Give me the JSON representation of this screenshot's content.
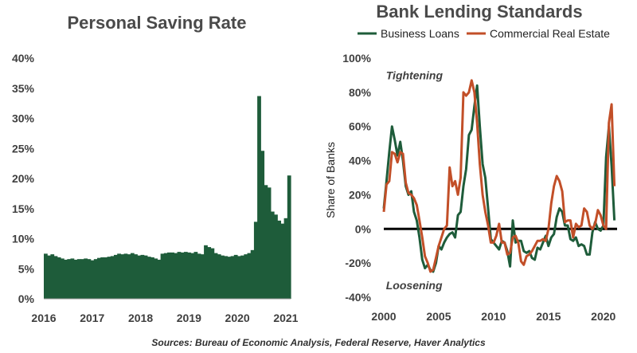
{
  "chart_data": [
    {
      "type": "bar",
      "title": "Personal Saving Rate",
      "xlabel": "",
      "ylabel": "",
      "ylim": [
        0,
        40
      ],
      "y_ticks": [
        "0%",
        "5%",
        "10%",
        "15%",
        "20%",
        "25%",
        "30%",
        "35%",
        "40%"
      ],
      "y_tick_values": [
        0,
        5,
        10,
        15,
        20,
        25,
        30,
        35,
        40
      ],
      "x_ticks": [
        "2016",
        "2017",
        "2018",
        "2019",
        "2020",
        "2021"
      ],
      "x_tick_values": [
        2016,
        2017,
        2018,
        2019,
        2020,
        2021
      ],
      "x_start": 2016,
      "x_end": 2021.1,
      "grid": false,
      "color": "#1e5c3a",
      "values": [
        7.5,
        7.2,
        7.4,
        7.1,
        6.9,
        6.7,
        6.5,
        6.6,
        6.7,
        6.5,
        6.6,
        6.6,
        6.7,
        6.6,
        6.4,
        6.6,
        6.8,
        6.9,
        6.9,
        7.0,
        7.1,
        7.3,
        7.5,
        7.4,
        7.5,
        7.4,
        7.6,
        7.4,
        7.2,
        7.3,
        7.2,
        7.0,
        6.9,
        6.7,
        6.5,
        7.5,
        7.6,
        7.7,
        7.7,
        7.6,
        7.8,
        7.7,
        7.8,
        7.7,
        7.6,
        7.8,
        7.5,
        7.4,
        8.9,
        8.6,
        8.4,
        7.6,
        7.4,
        7.2,
        7.1,
        7.0,
        7.1,
        7.3,
        7.1,
        7.2,
        7.4,
        7.6,
        8.1,
        12.8,
        33.7,
        24.6,
        18.9,
        18.5,
        14.5,
        14.0,
        13.0,
        12.5,
        13.4,
        20.5
      ]
    },
    {
      "type": "line",
      "title": "Bank Lending Standards",
      "xlabel": "",
      "ylabel": "Share of Banks",
      "ylim": [
        -40,
        100
      ],
      "y_ticks": [
        "100%",
        "80%",
        "60%",
        "40%",
        "20%",
        "0%",
        "-20%",
        "-40%"
      ],
      "y_tick_values": [
        100,
        80,
        60,
        40,
        20,
        0,
        -20,
        -40
      ],
      "x_ticks": [
        "2000",
        "2005",
        "2010",
        "2015",
        "2020"
      ],
      "x_tick_values": [
        2000,
        2005,
        2010,
        2015,
        2020
      ],
      "xlim": [
        2000,
        2021.25
      ],
      "grid": false,
      "legend_position": "top",
      "annotations": [
        {
          "text": "Tightening",
          "x": 2000.2,
          "y": 90
        },
        {
          "text": "Loosening",
          "x": 2000.2,
          "y": -33
        }
      ],
      "series": [
        {
          "name": "Business Loans",
          "color": "#1e5c3a",
          "x": [
            2000.0,
            2000.25,
            2000.5,
            2000.75,
            2001.0,
            2001.25,
            2001.5,
            2001.75,
            2002.0,
            2002.25,
            2002.5,
            2002.75,
            2003.0,
            2003.25,
            2003.5,
            2003.75,
            2004.0,
            2004.25,
            2004.5,
            2004.75,
            2005.0,
            2005.25,
            2005.5,
            2005.75,
            2006.0,
            2006.25,
            2006.5,
            2006.75,
            2007.0,
            2007.25,
            2007.5,
            2007.75,
            2008.0,
            2008.25,
            2008.5,
            2008.75,
            2009.0,
            2009.25,
            2009.5,
            2009.75,
            2010.0,
            2010.25,
            2010.5,
            2010.75,
            2011.0,
            2011.25,
            2011.5,
            2011.75,
            2012.0,
            2012.25,
            2012.5,
            2012.75,
            2013.0,
            2013.25,
            2013.5,
            2013.75,
            2014.0,
            2014.25,
            2014.5,
            2014.75,
            2015.0,
            2015.25,
            2015.5,
            2015.75,
            2016.0,
            2016.25,
            2016.5,
            2016.75,
            2017.0,
            2017.25,
            2017.5,
            2017.75,
            2018.0,
            2018.25,
            2018.5,
            2018.75,
            2019.0,
            2019.25,
            2019.5,
            2019.75,
            2020.0,
            2020.25,
            2020.5,
            2020.75,
            2021.0
          ],
          "y": [
            12,
            28,
            45,
            60,
            52,
            43,
            51,
            40,
            25,
            20,
            22,
            10,
            5,
            -5,
            -18,
            -23,
            -21,
            -24,
            -25,
            -20,
            -10,
            -12,
            -8,
            -5,
            -3,
            -2,
            -5,
            8,
            10,
            25,
            35,
            55,
            58,
            72,
            84,
            60,
            38,
            30,
            12,
            -6,
            -8,
            -10,
            -12,
            -7,
            -8,
            -13,
            -22,
            5,
            -8,
            -7,
            -7,
            -13,
            -14,
            -13,
            -17,
            -18,
            -11,
            -12,
            -8,
            -4,
            -10,
            -5,
            -3,
            7,
            12,
            10,
            2,
            2,
            -6,
            -7,
            -5,
            -10,
            -9,
            -10,
            -15,
            -15,
            -2,
            4,
            0,
            -1,
            2,
            42,
            60,
            37,
            5
          ]
        },
        {
          "name": "Commercial Real Estate",
          "color": "#c24f28",
          "x": [
            2000.0,
            2000.25,
            2000.5,
            2000.75,
            2001.0,
            2001.25,
            2001.5,
            2001.75,
            2002.0,
            2002.25,
            2002.5,
            2002.75,
            2003.0,
            2003.25,
            2003.5,
            2003.75,
            2004.0,
            2004.25,
            2004.5,
            2004.75,
            2005.0,
            2005.25,
            2005.5,
            2005.75,
            2006.0,
            2006.25,
            2006.5,
            2006.75,
            2007.0,
            2007.25,
            2007.5,
            2007.75,
            2008.0,
            2008.25,
            2008.5,
            2008.75,
            2009.0,
            2009.25,
            2009.5,
            2009.75,
            2010.0,
            2010.25,
            2010.5,
            2010.75,
            2011.0,
            2011.25,
            2011.5,
            2011.75,
            2012.0,
            2012.25,
            2012.5,
            2012.75,
            2013.0,
            2013.25,
            2013.5,
            2013.75,
            2014.0,
            2014.25,
            2014.5,
            2014.75,
            2015.0,
            2015.25,
            2015.5,
            2015.75,
            2016.0,
            2016.25,
            2016.5,
            2016.75,
            2017.0,
            2017.25,
            2017.5,
            2017.75,
            2018.0,
            2018.25,
            2018.5,
            2018.75,
            2019.0,
            2019.25,
            2019.5,
            2019.75,
            2020.0,
            2020.25,
            2020.5,
            2020.75,
            2021.0
          ],
          "y": [
            10,
            26,
            28,
            45,
            44,
            39,
            45,
            44,
            27,
            21,
            20,
            18,
            14,
            5,
            -5,
            -16,
            -20,
            -25,
            -24,
            -17,
            -10,
            -5,
            0,
            2,
            36,
            25,
            28,
            20,
            30,
            80,
            78,
            80,
            87,
            80,
            62,
            38,
            20,
            10,
            2,
            -8,
            -8,
            -4,
            3,
            -8,
            -8,
            -15,
            -14,
            -5,
            -4,
            -8,
            -19,
            -21,
            -16,
            -15,
            -13,
            -10,
            -7,
            -7,
            -6,
            -7,
            0,
            15,
            25,
            31,
            28,
            22,
            4,
            5,
            5,
            -5,
            3,
            1,
            2,
            12,
            10,
            2,
            0,
            3,
            11,
            8,
            2,
            0,
            62,
            73,
            25
          ]
        }
      ]
    }
  ],
  "footer": {
    "source": "Sources: Bureau of Economic Analysis, Federal Reserve, Haver Analytics"
  }
}
